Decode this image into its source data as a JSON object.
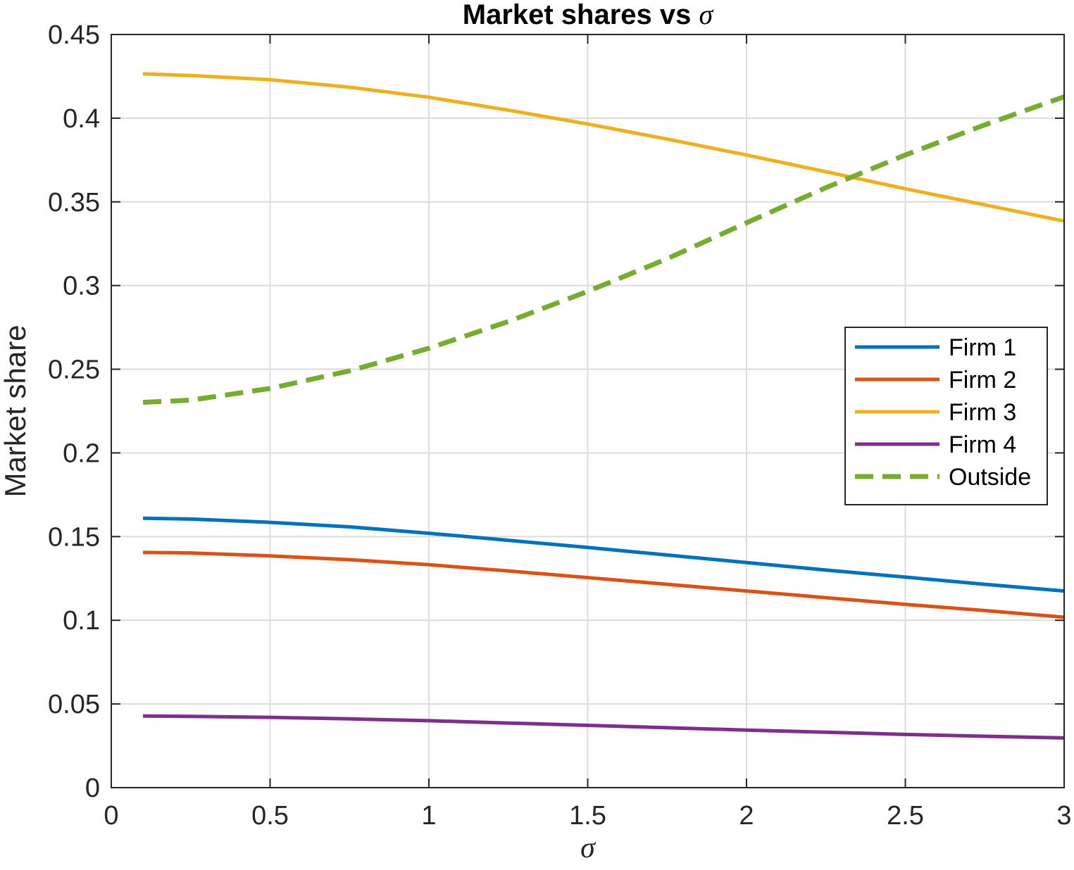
{
  "chart_data": {
    "type": "line",
    "title": {
      "text": "Market shares vs ",
      "symbol": "σ"
    },
    "xlabel": "σ",
    "ylabel": "Market share",
    "xlim": [
      0,
      3
    ],
    "ylim": [
      0,
      0.45
    ],
    "xticks": [
      0,
      0.5,
      1,
      1.5,
      2,
      2.5,
      3
    ],
    "xtick_labels": [
      "0",
      "0.5",
      "1",
      "1.5",
      "2",
      "2.5",
      "3"
    ],
    "yticks": [
      0,
      0.05,
      0.1,
      0.15,
      0.2,
      0.25,
      0.3,
      0.35,
      0.4,
      0.45
    ],
    "ytick_labels": [
      "0",
      "0.05",
      "0.1",
      "0.15",
      "0.2",
      "0.25",
      "0.3",
      "0.35",
      "0.4",
      "0.45"
    ],
    "grid": true,
    "legend_position": "right",
    "x": [
      0.1,
      0.25,
      0.5,
      0.75,
      1.0,
      1.25,
      1.5,
      1.75,
      2.0,
      2.25,
      2.5,
      2.75,
      3.0
    ],
    "series": [
      {
        "name": "Firm 1",
        "color": "#0072BD",
        "dash": "solid",
        "values": [
          0.161,
          0.1605,
          0.1585,
          0.1558,
          0.152,
          0.1478,
          0.1435,
          0.139,
          0.1345,
          0.13,
          0.1258,
          0.1215,
          0.1175
        ]
      },
      {
        "name": "Firm 2",
        "color": "#D95319",
        "dash": "solid",
        "values": [
          0.1405,
          0.1402,
          0.1385,
          0.1362,
          0.1332,
          0.1295,
          0.1255,
          0.1215,
          0.1175,
          0.1135,
          0.1095,
          0.1058,
          0.1018
        ]
      },
      {
        "name": "Firm 3",
        "color": "#EDB120",
        "dash": "solid",
        "values": [
          0.4265,
          0.4255,
          0.423,
          0.4185,
          0.4125,
          0.4048,
          0.3965,
          0.3875,
          0.378,
          0.368,
          0.3578,
          0.3482,
          0.3385
        ]
      },
      {
        "name": "Firm 4",
        "color": "#7E2F8E",
        "dash": "solid",
        "values": [
          0.0428,
          0.0426,
          0.042,
          0.0411,
          0.04,
          0.0386,
          0.0372,
          0.0358,
          0.0344,
          0.0331,
          0.0318,
          0.0307,
          0.0297
        ]
      },
      {
        "name": "Outside",
        "color": "#77AC30",
        "dash": "dashed",
        "values": [
          0.2302,
          0.2315,
          0.2385,
          0.249,
          0.2625,
          0.2785,
          0.2965,
          0.316,
          0.3375,
          0.3585,
          0.378,
          0.396,
          0.4128
        ]
      }
    ]
  }
}
